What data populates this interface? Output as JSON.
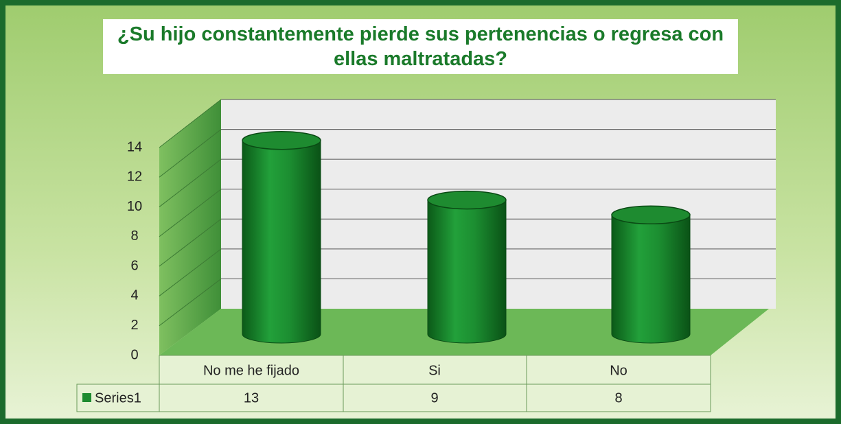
{
  "chart_data": {
    "type": "cylinder",
    "title": "¿Su hijo constantemente pierde sus pertenencias o regresa con ellas maltratadas?",
    "categories": [
      "No me he fijado",
      "Si",
      "No"
    ],
    "series": [
      {
        "name": "Series1",
        "color": "#1e8b30",
        "values": [
          13,
          9,
          8
        ]
      }
    ],
    "ylim": [
      0,
      14
    ],
    "yticks": [
      0,
      2,
      4,
      6,
      8,
      10,
      12,
      14
    ],
    "grid": true
  }
}
